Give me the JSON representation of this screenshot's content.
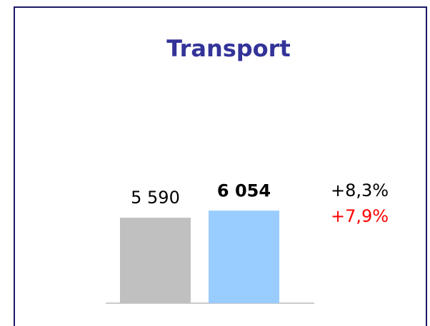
{
  "chart_data": {
    "type": "bar",
    "title": "Transport",
    "categories": [
      null,
      null
    ],
    "values": [
      5590,
      6054
    ],
    "value_labels": [
      "5 590",
      "6 054"
    ],
    "colors": [
      "#c0c0c0",
      "#99ccff"
    ],
    "ylim": [
      0,
      14000
    ],
    "annotations": [
      {
        "text": "+8,3%",
        "color": "#000000"
      },
      {
        "text": "+7,9%",
        "color": "#ff0000"
      }
    ]
  }
}
